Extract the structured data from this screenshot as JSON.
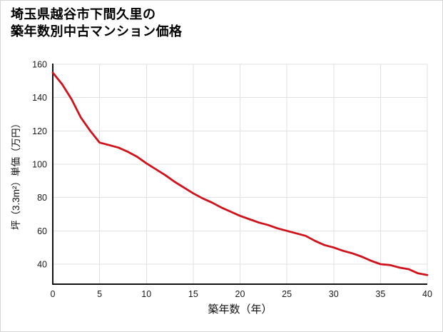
{
  "title": {
    "line1": "埼玉県越谷市下間久里の",
    "line2": "築年数別中古マンション価格"
  },
  "chart_data": {
    "type": "line",
    "title": "埼玉県越谷市下間久里の 築年数別中古マンション価格",
    "xlabel": "築年数（年）",
    "ylabel": "坪（3.3m²）単価（万円）",
    "x": [
      0,
      1,
      2,
      3,
      4,
      5,
      6,
      7,
      8,
      9,
      10,
      11,
      12,
      13,
      14,
      15,
      16,
      17,
      18,
      19,
      20,
      21,
      22,
      23,
      24,
      25,
      26,
      27,
      28,
      29,
      30,
      31,
      32,
      33,
      34,
      35,
      36,
      37,
      38,
      39,
      40
    ],
    "y": [
      155,
      148,
      139,
      128,
      120,
      113,
      111.5,
      110,
      107.5,
      104.5,
      100.5,
      97,
      93.5,
      89.5,
      86,
      82.5,
      79.5,
      77,
      74,
      71.5,
      69,
      67,
      65,
      63.5,
      61.5,
      60,
      58.5,
      57,
      54,
      51.5,
      50,
      48,
      46.5,
      44.5,
      42,
      40,
      39.5,
      38,
      37,
      34.5,
      33.5
    ],
    "x_ticks": [
      0,
      5,
      10,
      15,
      20,
      25,
      30,
      35,
      40
    ],
    "y_ticks": [
      40,
      60,
      80,
      100,
      120,
      140,
      160
    ],
    "xlim": [
      0,
      40
    ],
    "ylim": [
      28,
      160
    ],
    "grid": true,
    "legend": false,
    "line_color": "#cf121b"
  }
}
